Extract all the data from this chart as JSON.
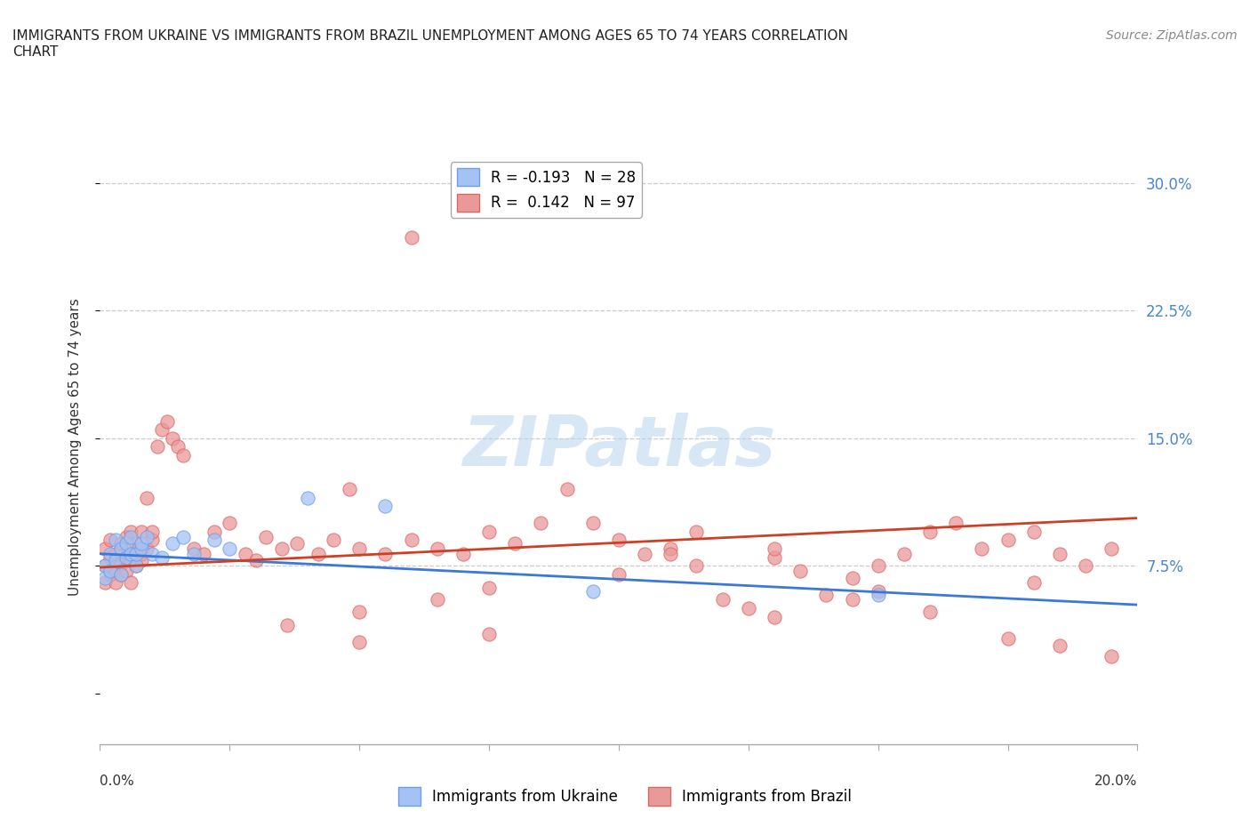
{
  "title_line1": "IMMIGRANTS FROM UKRAINE VS IMMIGRANTS FROM BRAZIL UNEMPLOYMENT AMONG AGES 65 TO 74 YEARS CORRELATION",
  "title_line2": "CHART",
  "source": "Source: ZipAtlas.com",
  "xlim": [
    0.0,
    0.2
  ],
  "ylim": [
    -0.03,
    0.32
  ],
  "yticks": [
    0.0,
    0.075,
    0.15,
    0.225,
    0.3
  ],
  "ytick_labels": [
    "",
    "7.5%",
    "15.0%",
    "22.5%",
    "30.0%"
  ],
  "ukraine_color": "#a4c2f4",
  "brazil_color": "#ea9999",
  "ukraine_edge_color": "#6d9eeb",
  "brazil_edge_color": "#e06666",
  "ukraine_line_color": "#3c78d8",
  "brazil_line_color": "#cc4125",
  "ukraine_R": -0.193,
  "ukraine_N": 28,
  "brazil_R": 0.142,
  "brazil_N": 97,
  "ukraine_scatter_x": [
    0.001,
    0.001,
    0.002,
    0.002,
    0.003,
    0.003,
    0.004,
    0.004,
    0.005,
    0.005,
    0.006,
    0.006,
    0.007,
    0.007,
    0.008,
    0.008,
    0.009,
    0.01,
    0.012,
    0.014,
    0.016,
    0.018,
    0.022,
    0.025,
    0.04,
    0.055,
    0.095,
    0.15
  ],
  "ukraine_scatter_y": [
    0.075,
    0.068,
    0.082,
    0.072,
    0.09,
    0.078,
    0.085,
    0.07,
    0.08,
    0.088,
    0.082,
    0.092,
    0.075,
    0.082,
    0.085,
    0.088,
    0.092,
    0.082,
    0.08,
    0.088,
    0.092,
    0.082,
    0.09,
    0.085,
    0.115,
    0.11,
    0.06,
    0.058
  ],
  "brazil_scatter_x": [
    0.001,
    0.001,
    0.001,
    0.002,
    0.002,
    0.002,
    0.003,
    0.003,
    0.003,
    0.003,
    0.004,
    0.004,
    0.004,
    0.005,
    0.005,
    0.005,
    0.006,
    0.006,
    0.006,
    0.006,
    0.007,
    0.007,
    0.007,
    0.008,
    0.008,
    0.008,
    0.009,
    0.009,
    0.01,
    0.01,
    0.011,
    0.012,
    0.013,
    0.014,
    0.015,
    0.016,
    0.018,
    0.02,
    0.022,
    0.025,
    0.028,
    0.03,
    0.032,
    0.035,
    0.038,
    0.042,
    0.045,
    0.05,
    0.055,
    0.06,
    0.06,
    0.065,
    0.07,
    0.075,
    0.08,
    0.085,
    0.09,
    0.095,
    0.1,
    0.105,
    0.11,
    0.115,
    0.12,
    0.125,
    0.13,
    0.135,
    0.14,
    0.145,
    0.15,
    0.155,
    0.16,
    0.165,
    0.17,
    0.175,
    0.18,
    0.185,
    0.19,
    0.195,
    0.036,
    0.05,
    0.065,
    0.075,
    0.1,
    0.115,
    0.13,
    0.145,
    0.16,
    0.175,
    0.185,
    0.195,
    0.048,
    0.11,
    0.13,
    0.05,
    0.075,
    0.15,
    0.18
  ],
  "brazil_scatter_y": [
    0.065,
    0.075,
    0.085,
    0.08,
    0.07,
    0.09,
    0.072,
    0.065,
    0.078,
    0.082,
    0.088,
    0.076,
    0.07,
    0.092,
    0.08,
    0.072,
    0.085,
    0.078,
    0.065,
    0.095,
    0.082,
    0.088,
    0.075,
    0.095,
    0.082,
    0.078,
    0.085,
    0.115,
    0.09,
    0.095,
    0.145,
    0.155,
    0.16,
    0.15,
    0.145,
    0.14,
    0.085,
    0.082,
    0.095,
    0.1,
    0.082,
    0.078,
    0.092,
    0.085,
    0.088,
    0.082,
    0.09,
    0.085,
    0.082,
    0.09,
    0.268,
    0.085,
    0.082,
    0.095,
    0.088,
    0.1,
    0.12,
    0.1,
    0.09,
    0.082,
    0.085,
    0.095,
    0.055,
    0.05,
    0.045,
    0.072,
    0.058,
    0.068,
    0.075,
    0.082,
    0.095,
    0.1,
    0.085,
    0.09,
    0.095,
    0.082,
    0.075,
    0.085,
    0.04,
    0.048,
    0.055,
    0.062,
    0.07,
    0.075,
    0.08,
    0.055,
    0.048,
    0.032,
    0.028,
    0.022,
    0.12,
    0.082,
    0.085,
    0.03,
    0.035,
    0.06,
    0.065
  ],
  "ukraine_trend_x0": 0.0,
  "ukraine_trend_x1": 0.2,
  "ukraine_trend_y0": 0.082,
  "ukraine_trend_y1": 0.052,
  "brazil_trend_x0": 0.0,
  "brazil_trend_x1": 0.2,
  "brazil_trend_y0": 0.074,
  "brazil_trend_y1": 0.103,
  "watermark_text": "ZIPatlas",
  "background_color": "#ffffff",
  "grid_color": "#cccccc",
  "right_label_color": "#4a86c8",
  "ylabel": "Unemployment Among Ages 65 to 74 years"
}
